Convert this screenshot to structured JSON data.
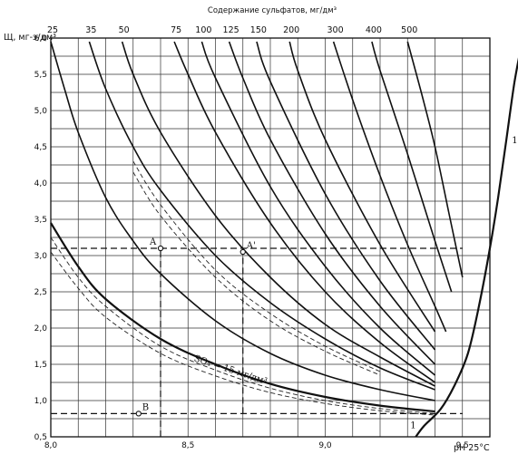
{
  "chart_data": {
    "type": "line",
    "title": "Содержание сульфатов, мг/дм³",
    "ylabel": "Щ, мг-э/дм³",
    "xlabel": "pH 25°C",
    "xlim": [
      8.0,
      9.6
    ],
    "ylim": [
      0.5,
      6.0
    ],
    "x_ticks": [
      "8,0",
      "8,5",
      "9,0",
      "9,5"
    ],
    "y_ticks": [
      "0,5",
      "1,0",
      "1,5",
      "2,0",
      "2,5",
      "3,0",
      "3,5",
      "4,0",
      "4,5",
      "5,0",
      "5,5",
      "6,0"
    ],
    "top_ticks": [
      "25",
      "35",
      "50",
      "75",
      "100",
      "125",
      "150",
      "200",
      "300",
      "400",
      "500"
    ],
    "grid": true,
    "series": [
      {
        "name": "15",
        "points": [
          [
            8.0,
            3.45
          ],
          [
            8.1,
            2.85
          ],
          [
            8.2,
            2.4
          ],
          [
            8.4,
            1.85
          ],
          [
            8.6,
            1.5
          ],
          [
            8.8,
            1.23
          ],
          [
            9.0,
            1.05
          ],
          [
            9.2,
            0.93
          ],
          [
            9.4,
            0.85
          ]
        ]
      },
      {
        "name": "25",
        "points": [
          [
            8.0,
            5.95
          ],
          [
            8.05,
            5.3
          ],
          [
            8.1,
            4.7
          ],
          [
            8.2,
            3.8
          ],
          [
            8.3,
            3.2
          ],
          [
            8.4,
            2.75
          ],
          [
            8.6,
            2.1
          ],
          [
            8.8,
            1.65
          ],
          [
            9.0,
            1.35
          ],
          [
            9.2,
            1.15
          ],
          [
            9.4,
            1.0
          ]
        ]
      },
      {
        "name": "35",
        "points": [
          [
            8.14,
            5.95
          ],
          [
            8.2,
            5.3
          ],
          [
            8.3,
            4.5
          ],
          [
            8.4,
            3.9
          ],
          [
            8.6,
            3.0
          ],
          [
            8.8,
            2.35
          ],
          [
            9.0,
            1.85
          ],
          [
            9.2,
            1.45
          ],
          [
            9.4,
            1.15
          ]
        ]
      },
      {
        "name": "50",
        "points": [
          [
            8.26,
            5.95
          ],
          [
            8.3,
            5.5
          ],
          [
            8.4,
            4.7
          ],
          [
            8.6,
            3.55
          ],
          [
            8.8,
            2.7
          ],
          [
            9.0,
            2.05
          ],
          [
            9.2,
            1.6
          ],
          [
            9.4,
            1.2
          ]
        ]
      },
      {
        "name": "75",
        "points": [
          [
            8.45,
            5.95
          ],
          [
            8.5,
            5.5
          ],
          [
            8.6,
            4.7
          ],
          [
            8.8,
            3.45
          ],
          [
            9.0,
            2.5
          ],
          [
            9.2,
            1.8
          ],
          [
            9.4,
            1.25
          ]
        ]
      },
      {
        "name": "100",
        "points": [
          [
            8.55,
            5.95
          ],
          [
            8.6,
            5.45
          ],
          [
            8.8,
            3.95
          ],
          [
            9.0,
            2.85
          ],
          [
            9.2,
            2.0
          ],
          [
            9.4,
            1.35
          ]
        ]
      },
      {
        "name": "125",
        "points": [
          [
            8.65,
            5.95
          ],
          [
            8.7,
            5.45
          ],
          [
            8.8,
            4.6
          ],
          [
            9.0,
            3.3
          ],
          [
            9.2,
            2.3
          ],
          [
            9.4,
            1.5
          ]
        ]
      },
      {
        "name": "150",
        "points": [
          [
            8.75,
            5.95
          ],
          [
            8.8,
            5.4
          ],
          [
            9.0,
            3.85
          ],
          [
            9.2,
            2.65
          ],
          [
            9.4,
            1.7
          ]
        ]
      },
      {
        "name": "200",
        "points": [
          [
            8.87,
            5.95
          ],
          [
            8.9,
            5.55
          ],
          [
            9.0,
            4.6
          ],
          [
            9.2,
            3.15
          ],
          [
            9.4,
            1.95
          ]
        ]
      },
      {
        "name": "300",
        "points": [
          [
            9.03,
            5.95
          ],
          [
            9.1,
            5.15
          ],
          [
            9.2,
            4.1
          ],
          [
            9.3,
            3.15
          ],
          [
            9.4,
            2.3
          ],
          [
            9.44,
            1.95
          ]
        ]
      },
      {
        "name": "400",
        "points": [
          [
            9.17,
            5.95
          ],
          [
            9.2,
            5.55
          ],
          [
            9.3,
            4.4
          ],
          [
            9.4,
            3.2
          ],
          [
            9.46,
            2.5
          ]
        ]
      },
      {
        "name": "500",
        "points": [
          [
            9.3,
            5.95
          ],
          [
            9.35,
            5.25
          ],
          [
            9.4,
            4.5
          ],
          [
            9.45,
            3.6
          ],
          [
            9.5,
            2.7
          ]
        ]
      }
    ],
    "limit_curve": {
      "name": "1",
      "points": [
        [
          9.33,
          0.5
        ],
        [
          9.36,
          0.65
        ],
        [
          9.42,
          0.88
        ],
        [
          9.47,
          1.2
        ],
        [
          9.52,
          1.65
        ],
        [
          9.56,
          2.3
        ],
        [
          9.6,
          3.1
        ],
        [
          9.63,
          3.8
        ],
        [
          9.66,
          4.6
        ],
        [
          9.69,
          5.4
        ],
        [
          9.72,
          6.0
        ]
      ]
    },
    "dashed_curves": [
      {
        "points": [
          [
            8.0,
            3.25
          ],
          [
            8.1,
            2.7
          ],
          [
            8.2,
            2.3
          ],
          [
            8.4,
            1.75
          ],
          [
            8.6,
            1.42
          ],
          [
            8.8,
            1.17
          ],
          [
            9.0,
            1.0
          ],
          [
            9.2,
            0.89
          ],
          [
            9.4,
            0.82
          ]
        ]
      },
      {
        "points": [
          [
            8.0,
            3.05
          ],
          [
            8.1,
            2.55
          ],
          [
            8.2,
            2.15
          ],
          [
            8.4,
            1.65
          ],
          [
            8.6,
            1.34
          ],
          [
            8.8,
            1.11
          ],
          [
            9.0,
            0.96
          ],
          [
            9.2,
            0.86
          ],
          [
            9.4,
            0.8
          ]
        ]
      },
      {
        "points": [
          [
            8.3,
            4.3
          ],
          [
            8.4,
            3.7
          ],
          [
            8.6,
            2.8
          ],
          [
            8.8,
            2.2
          ],
          [
            9.0,
            1.75
          ],
          [
            9.2,
            1.4
          ]
        ]
      },
      {
        "points": [
          [
            8.3,
            4.15
          ],
          [
            8.4,
            3.55
          ],
          [
            8.6,
            2.7
          ],
          [
            8.8,
            2.1
          ],
          [
            9.0,
            1.68
          ],
          [
            9.2,
            1.35
          ]
        ]
      }
    ],
    "reference_lines": [
      {
        "type": "h",
        "y": 3.1,
        "x_from": 8.0,
        "x_to": 9.5
      },
      {
        "type": "h",
        "y": 0.82,
        "x_from": 8.0,
        "x_to": 9.5
      },
      {
        "type": "v",
        "x": 8.4,
        "y_from": 0.5,
        "y_to": 3.1
      },
      {
        "type": "v",
        "x": 8.7,
        "y_from": 0.82,
        "y_to": 3.1
      }
    ],
    "points": [
      {
        "label": "A",
        "x": 8.4,
        "y": 3.1
      },
      {
        "label": "A'",
        "x": 8.7,
        "y": 3.05
      },
      {
        "label": "B",
        "x": 8.32,
        "y": 0.82
      }
    ],
    "annotations": [
      {
        "text": "SO₄ = 15 мг/дм³",
        "x": 8.52,
        "y": 1.55
      },
      {
        "text": "1",
        "x": 9.68,
        "y": 4.55
      },
      {
        "text": "1",
        "x": 9.31,
        "y": 0.62
      }
    ]
  }
}
